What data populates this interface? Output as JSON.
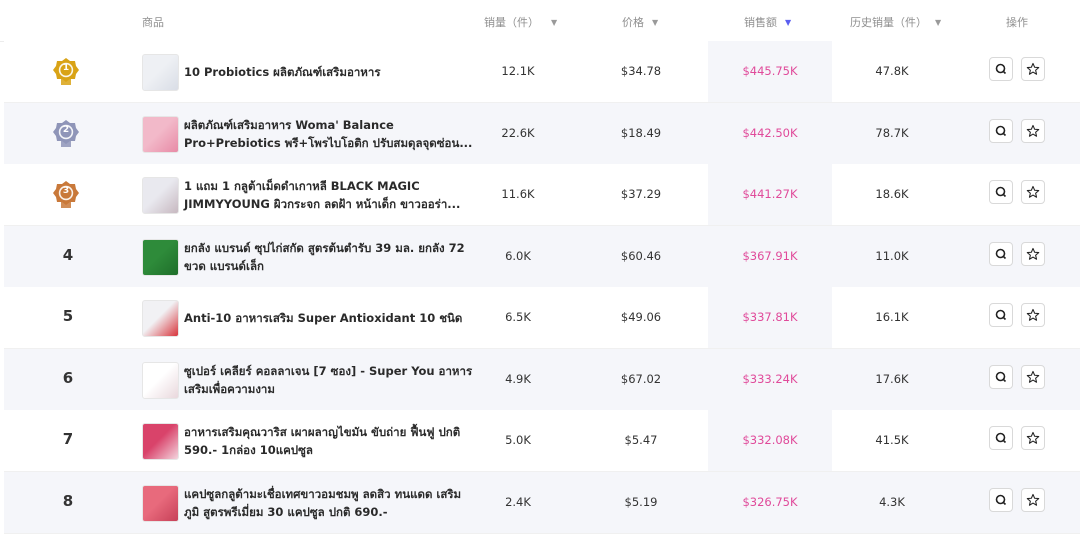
{
  "header": {
    "product": "商品",
    "volume": "销量（件）",
    "price": "价格",
    "revenue": "销售额",
    "history": "历史销量（件）",
    "action": "操作"
  },
  "colors": {
    "revenue_text": "#e04a9a",
    "active_sort": "#5b5ff0",
    "gold": "#d9a316",
    "silver": "#8f95b8",
    "bronze": "#c9793a"
  },
  "rows": [
    {
      "rank": "1",
      "medal": "gold",
      "name_l1": "10 Probiotics ผลิตภัณฑ์เสริมอาหาร",
      "name_l2": "",
      "volume": "12.1K",
      "price": "$34.78",
      "revenue": "$445.75K",
      "history": "47.8K"
    },
    {
      "rank": "2",
      "medal": "silver",
      "name_l1": "ผลิตภัณฑ์เสริมอาหาร Woma' Balance",
      "name_l2": "Pro+Prebiotics พรี+โพรไบโอติก ปรับสมดุลจุดซ่อน...",
      "volume": "22.6K",
      "price": "$18.49",
      "revenue": "$442.50K",
      "history": "78.7K"
    },
    {
      "rank": "3",
      "medal": "bronze",
      "name_l1": "1 แถม 1 กลูต้าเม็ดดำเกาหลี BLACK MAGIC",
      "name_l2": "JIMMYYOUNG ผิวกระจก ลดฝ้า หน้าเด็ก ขาวออร่า...",
      "volume": "11.6K",
      "price": "$37.29",
      "revenue": "$441.27K",
      "history": "18.6K"
    },
    {
      "rank": "4",
      "medal": "",
      "name_l1": "ยกลัง แบรนด์ ซุปไก่สกัด สูตรต้นตำรับ 39 มล. ยกลัง 72",
      "name_l2": "ขวด แบรนด์เล็ก",
      "volume": "6.0K",
      "price": "$60.46",
      "revenue": "$367.91K",
      "history": "11.0K"
    },
    {
      "rank": "5",
      "medal": "",
      "name_l1": "Anti-10 อาหารเสริม Super Antioxidant 10 ชนิด",
      "name_l2": "",
      "volume": "6.5K",
      "price": "$49.06",
      "revenue": "$337.81K",
      "history": "16.1K"
    },
    {
      "rank": "6",
      "medal": "",
      "name_l1": "ซูเปอร์ เคลียร์ คอลลาเจน [7 ซอง] - Super You อาหาร",
      "name_l2": "เสริมเพื่อความงาม",
      "volume": "4.9K",
      "price": "$67.02",
      "revenue": "$333.24K",
      "history": "17.6K"
    },
    {
      "rank": "7",
      "medal": "",
      "name_l1": "อาหารเสริมคุณวาริส เผาผลาญไขมัน ขับถ่าย ฟื้นฟู ปกติ",
      "name_l2": "590.- 1กล่อง 10แคปซูล",
      "volume": "5.0K",
      "price": "$5.47",
      "revenue": "$332.08K",
      "history": "41.5K"
    },
    {
      "rank": "8",
      "medal": "",
      "name_l1": "แคปซูลกลูต้ามะเชื่อเทศขาวอมชมพู ลดสิว ทนแดด เสริม",
      "name_l2": "ภูมิ สูตรพรีเมี่ยม 30 แคปซูล ปกติ 690.-",
      "volume": "2.4K",
      "price": "$5.19",
      "revenue": "$326.75K",
      "history": "4.3K"
    }
  ]
}
